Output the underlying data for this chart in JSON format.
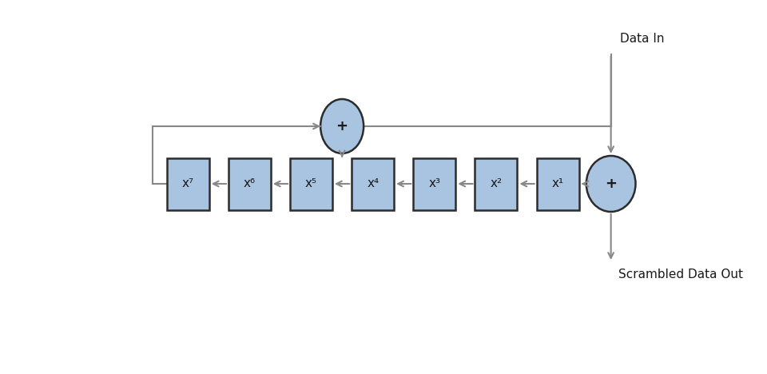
{
  "background_color": "#ffffff",
  "box_fill_color": "#a8c4e0",
  "box_edge_color": "#2c2c2c",
  "circle_fill_color": "#a8c4e0",
  "circle_edge_color": "#2c2c2c",
  "arrow_color": "#888888",
  "text_color": "#1a1a1a",
  "box_labels": [
    "x⁷",
    "x⁶",
    "x⁵",
    "x⁴",
    "x³",
    "x²",
    "x¹"
  ],
  "label_data_in": "Data In",
  "label_data_out": "Scrambled Data Out",
  "font_size_labels": 11,
  "font_size_registers": 11,
  "fig_width": 9.6,
  "fig_height": 4.68,
  "dpi": 100
}
